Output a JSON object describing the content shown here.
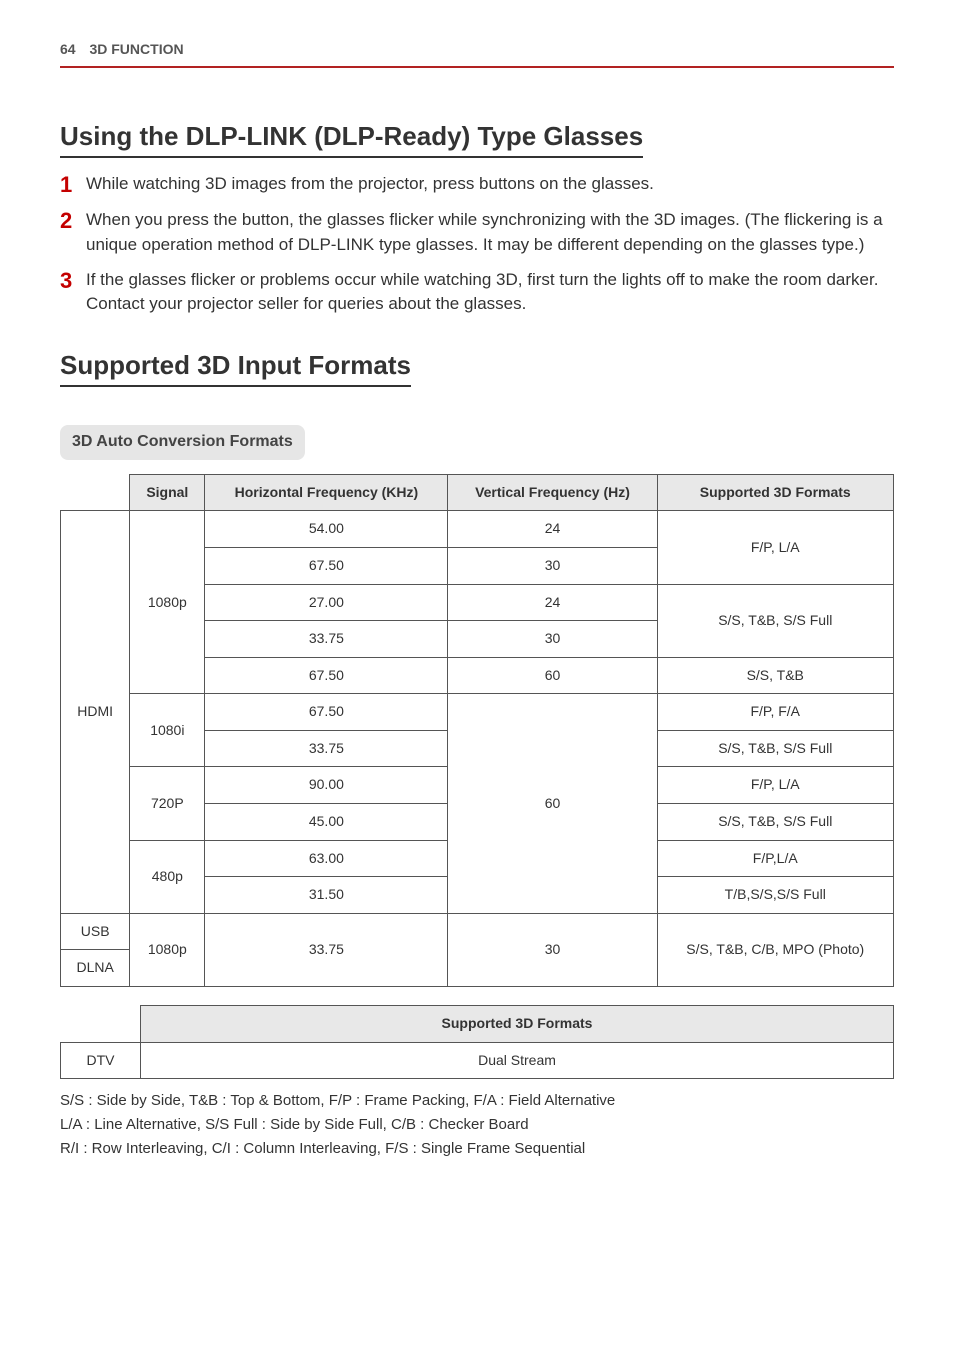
{
  "header": {
    "page_number": "64",
    "section": "3D FUNCTION"
  },
  "headline1": "Using the DLP-LINK (DLP-Ready) Type Glasses",
  "steps": [
    {
      "n": "1",
      "text": "While watching 3D images from the projector, press buttons on the glasses."
    },
    {
      "n": "2",
      "text": "When you press the button, the glasses flicker while synchronizing with the 3D images. (The flickering is a unique operation method of DLP-LINK type glasses. It may be different depending on the glasses type.)"
    },
    {
      "n": "3",
      "text": "If the glasses flicker or problems occur while watching 3D, first turn the lights off to make the room darker. Contact your projector seller for queries about the glasses."
    }
  ],
  "headline2": "Supported 3D Input Formats",
  "subheading": "3D Auto Conversion Formats",
  "main_table": {
    "headers": [
      "Signal",
      "Horizontal Frequency (KHz)",
      "Vertical Frequency (Hz)",
      "Supported 3D Formats"
    ],
    "rows": {
      "hdmi_label": "HDMI",
      "usb_label": "USB",
      "dlna_label": "DLNA",
      "sig_1080p": "1080p",
      "sig_1080i": "1080i",
      "sig_720p": "720P",
      "sig_480p": "480p",
      "h1": "54.00",
      "v1": "24",
      "h2": "67.50",
      "v2": "30",
      "h3": "27.00",
      "v3": "24",
      "h4": "33.75",
      "v4": "30",
      "h5": "67.50",
      "v5": "60",
      "h6": "67.50",
      "h7": "33.75",
      "h8": "90.00",
      "h9": "45.00",
      "h10": "63.00",
      "h11": "31.50",
      "v_60": "60",
      "usb_h": "33.75",
      "usb_v": "30",
      "fmt_fp_la": "F/P, L/A",
      "fmt_ss_tb_full": "S/S, T&B, S/S Full",
      "fmt_ss_tb": "S/S, T&B",
      "fmt_fp_fa": "F/P, F/A",
      "fmt_fp_la2": "F/P, L/A",
      "fmt_fpla3": "F/P,L/A",
      "fmt_tb_ss_full": "T/B,S/S,S/S Full",
      "fmt_usb": "S/S, T&B, C/B, MPO (Photo)"
    }
  },
  "small_table": {
    "header": "Supported 3D Formats",
    "dtv_label": "DTV",
    "dtv_value": "Dual Stream"
  },
  "notes": {
    "line1": "S/S : Side by Side, T&B : Top & Bottom, F/P : Frame Packing, F/A : Field Alternative",
    "line2": "L/A : Line Alternative, S/S Full : Side by Side Full, C/B : Checker Board",
    "line3": "R/I : Row Interleaving, C/I : Column Interleaving, F/S : Single Frame Sequential"
  },
  "colors": {
    "accent_red": "#b22222",
    "step_red": "#c40000",
    "header_gray": "#e8e8e8",
    "sub_gray": "#e6e6e6",
    "border": "#555555",
    "text": "#333333"
  }
}
